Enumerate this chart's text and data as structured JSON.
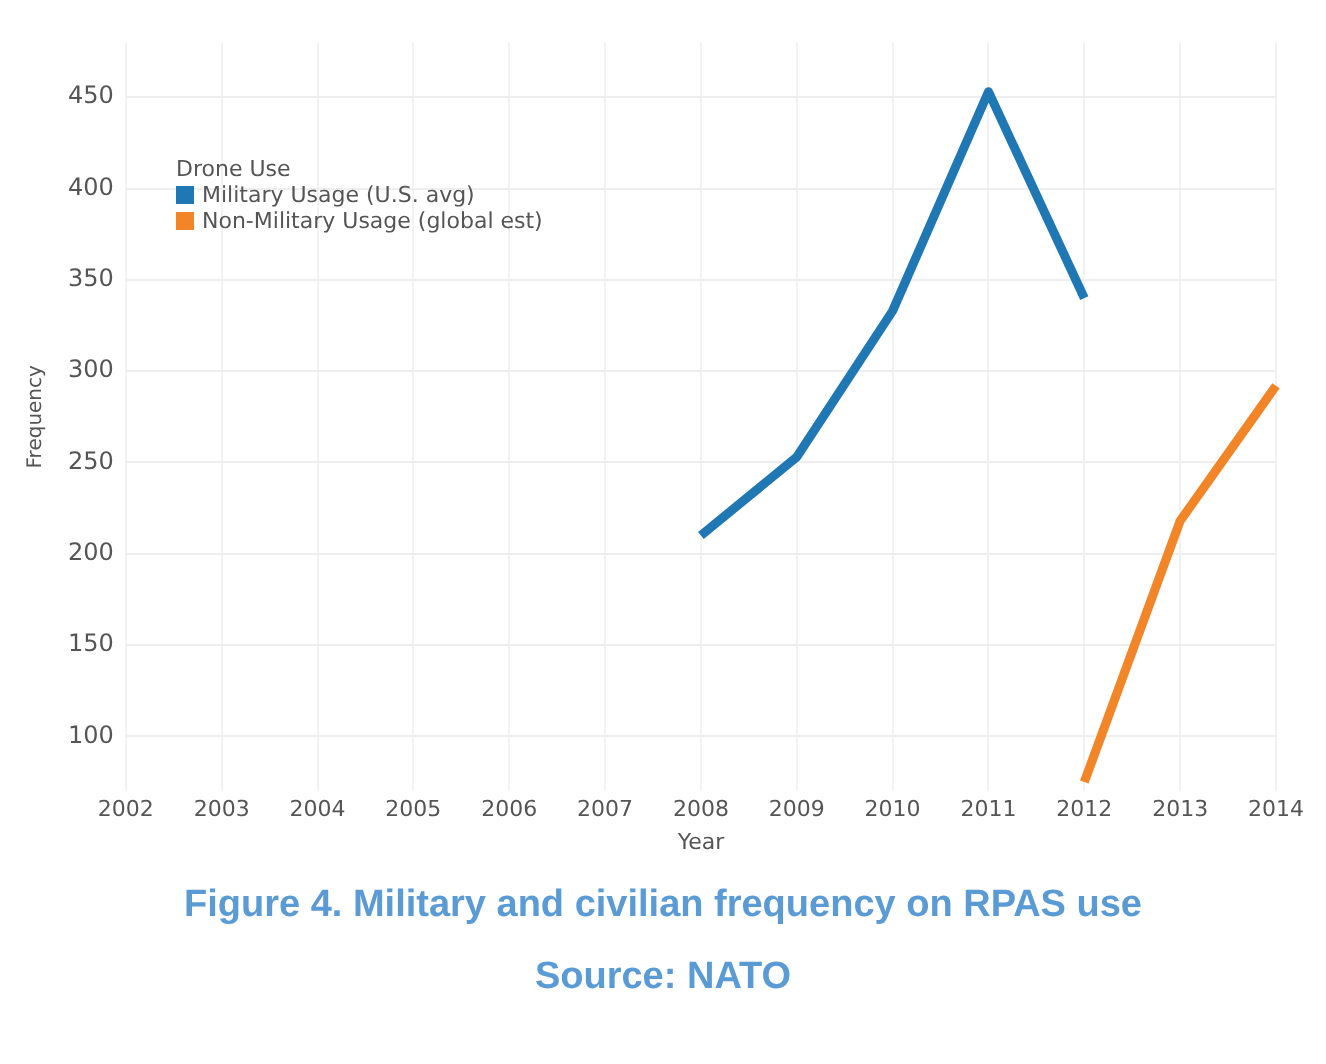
{
  "chart_data": {
    "type": "line",
    "annotations": [
      "Figure 4. Military and civilian frequency on RPAS use",
      "Source: NATO"
    ],
    "xlabel": "Year",
    "ylabel": "Frequency",
    "legend_title": "Drone Use",
    "categories": [
      "2002",
      "2003",
      "2004",
      "2005",
      "2006",
      "2007",
      "2008",
      "2009",
      "2010",
      "2011",
      "2012",
      "2013",
      "2014"
    ],
    "series": [
      {
        "name": "Military Usage (U.S. avg)",
        "color": "#1f77b4",
        "values": [
          null,
          null,
          null,
          null,
          null,
          null,
          210,
          253,
          333,
          453,
          340,
          null,
          null
        ]
      },
      {
        "name": "Non-Military Usage (global est)",
        "color": "#f28527",
        "values": [
          null,
          null,
          null,
          null,
          null,
          null,
          null,
          null,
          null,
          null,
          75,
          218,
          292
        ]
      }
    ],
    "ylim": [
      70,
      480
    ],
    "yticks": [
      100,
      150,
      200,
      250,
      300,
      350,
      400,
      450
    ],
    "grid": true,
    "legend": "top left",
    "marker": "none",
    "line_style": "solid"
  }
}
